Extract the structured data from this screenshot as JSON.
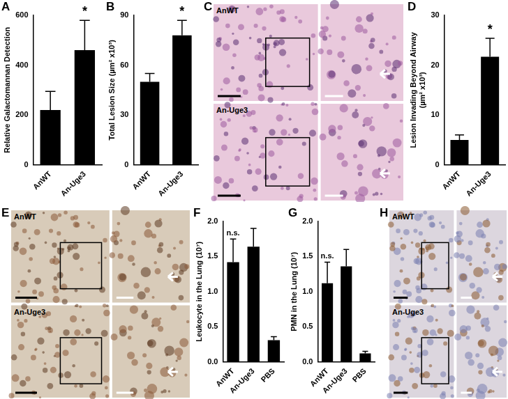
{
  "chart_data": [
    {
      "panel": "A",
      "type": "bar",
      "ylabel": "Relative Galactomannan Detection",
      "categories": [
        "AnWT",
        "An-Uge3"
      ],
      "values": [
        220,
        460
      ],
      "errors": [
        75,
        120
      ],
      "color": "#000000",
      "ylim": [
        0,
        600
      ],
      "yticks": [
        0,
        200,
        400,
        600
      ],
      "grid": false,
      "annotations": [
        {
          "category": "An-Uge3",
          "text": "*"
        }
      ]
    },
    {
      "panel": "B",
      "type": "bar",
      "ylabel": "Total Lesion Size (µm² x10³)",
      "categories": [
        "AnWT",
        "An-Uge3"
      ],
      "values": [
        50,
        78
      ],
      "errors": [
        5,
        9
      ],
      "color": "#000000",
      "ylim": [
        0,
        90
      ],
      "yticks": [
        0,
        30,
        60,
        90
      ],
      "grid": false,
      "annotations": [
        {
          "category": "An-Uge3",
          "text": "*"
        }
      ]
    },
    {
      "panel": "D",
      "type": "bar",
      "ylabel": "Lesion Invading Beyond Airway (µm² x10³)",
      "categories": [
        "AnWT",
        "An-Uge3"
      ],
      "values": [
        5,
        21.7
      ],
      "errors": [
        1,
        3.7
      ],
      "color": "#000000",
      "ylim": [
        0,
        30
      ],
      "yticks": [
        0,
        10,
        20,
        30
      ],
      "grid": false,
      "annotations": [
        {
          "category": "An-Uge3",
          "text": "*"
        }
      ]
    },
    {
      "panel": "F",
      "type": "bar",
      "ylabel": "Leukocyte in the Lung (10⁷)",
      "categories": [
        "AnWT",
        "An-Uge3",
        "PBS"
      ],
      "values": [
        1.42,
        1.64,
        0.31
      ],
      "errors": [
        0.33,
        0.26,
        0.05
      ],
      "color": "#000000",
      "ylim": [
        0,
        2
      ],
      "yticks": [
        {
          "value": 0,
          "label": "0.0"
        },
        {
          "value": 0.5,
          "label": "0.5"
        },
        {
          "value": 1,
          "label": "1.0"
        },
        {
          "value": 1.5,
          "label": "1.5"
        },
        {
          "value": 2,
          "label": "2.0"
        }
      ],
      "grid": false,
      "annotations": [
        {
          "category": "AnWT",
          "text": "n.s."
        }
      ]
    },
    {
      "panel": "G",
      "type": "bar",
      "ylabel": "PMN in the Lung (10⁷)",
      "categories": [
        "AnWT",
        "An-Uge3",
        "PBS"
      ],
      "values": [
        1.12,
        1.36,
        0.12
      ],
      "errors": [
        0.3,
        0.24,
        0.03
      ],
      "color": "#000000",
      "ylim": [
        0,
        2
      ],
      "yticks": [
        {
          "value": 0,
          "label": "0.0"
        },
        {
          "value": 0.5,
          "label": "0.5"
        },
        {
          "value": 1,
          "label": "1.0"
        },
        {
          "value": 1.5,
          "label": "1.5"
        },
        {
          "value": 2,
          "label": "2.0"
        }
      ],
      "grid": false,
      "annotations": [
        {
          "category": "AnWT",
          "text": "n.s."
        }
      ]
    }
  ],
  "image_panels": [
    {
      "panel": "C",
      "rows": [
        "AnWT",
        "An-Uge3"
      ]
    },
    {
      "panel": "E",
      "rows": [
        "AnWT",
        "An-Uge3"
      ]
    },
    {
      "panel": "H",
      "rows": [
        "AnWT",
        "An-Uge3"
      ]
    }
  ]
}
